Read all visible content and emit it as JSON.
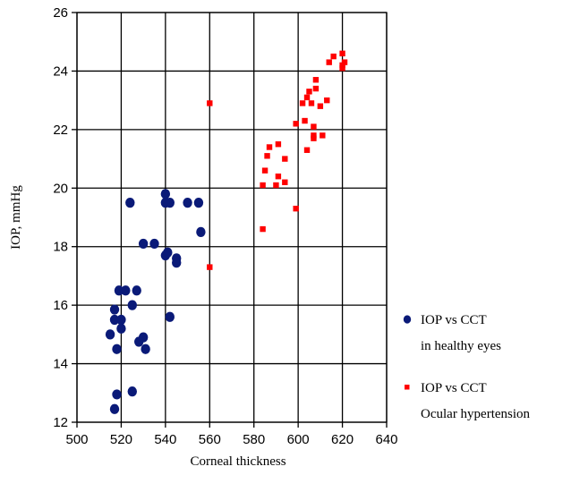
{
  "chart_data": {
    "type": "scatter",
    "title": "",
    "xlabel": "Corneal thickness",
    "ylabel": "IOP, mmHg",
    "xlim": [
      500,
      640
    ],
    "ylim": [
      12,
      26
    ],
    "x_ticks": [
      "500",
      "520",
      "540",
      "560",
      "580",
      "600",
      "620",
      "640"
    ],
    "y_ticks": [
      "12",
      "14",
      "16",
      "18",
      "20",
      "22",
      "24",
      "26"
    ],
    "grid": true,
    "legend_position": "right",
    "series": [
      {
        "name_lines": [
          "IOP vs CCT",
          "in healthy eyes"
        ],
        "color": "#0a1a78",
        "marker": "circle",
        "points": [
          [
            524,
            19.5
          ],
          [
            540,
            19.8
          ],
          [
            540,
            19.5
          ],
          [
            542,
            19.5
          ],
          [
            550,
            19.5
          ],
          [
            555,
            19.5
          ],
          [
            556,
            18.5
          ],
          [
            530,
            18.1
          ],
          [
            535,
            18.1
          ],
          [
            540,
            17.7
          ],
          [
            541,
            17.8
          ],
          [
            545,
            17.6
          ],
          [
            545,
            17.45
          ],
          [
            519,
            16.5
          ],
          [
            522,
            16.5
          ],
          [
            527,
            16.5
          ],
          [
            525,
            16.0
          ],
          [
            517,
            15.85
          ],
          [
            517,
            15.5
          ],
          [
            520,
            15.5
          ],
          [
            542,
            15.6
          ],
          [
            520,
            15.2
          ],
          [
            515,
            15.0
          ],
          [
            530,
            14.9
          ],
          [
            528,
            14.75
          ],
          [
            518,
            14.5
          ],
          [
            531,
            14.5
          ],
          [
            525,
            13.05
          ],
          [
            518,
            12.95
          ],
          [
            517,
            12.45
          ]
        ]
      },
      {
        "name_lines": [
          "IOP vs CCT",
          "Ocular hypertension"
        ],
        "color": "#ff0000",
        "marker": "square",
        "points": [
          [
            560,
            22.9
          ],
          [
            560,
            17.3
          ],
          [
            584,
            18.6
          ],
          [
            599,
            19.3
          ],
          [
            584,
            20.1
          ],
          [
            590,
            20.1
          ],
          [
            594,
            20.2
          ],
          [
            591,
            20.4
          ],
          [
            585,
            20.6
          ],
          [
            594,
            21.0
          ],
          [
            586,
            21.1
          ],
          [
            587,
            21.4
          ],
          [
            591,
            21.5
          ],
          [
            604,
            21.3
          ],
          [
            607,
            21.7
          ],
          [
            607,
            21.8
          ],
          [
            611,
            21.8
          ],
          [
            607,
            22.1
          ],
          [
            599,
            22.2
          ],
          [
            603,
            22.3
          ],
          [
            602,
            22.9
          ],
          [
            606,
            22.9
          ],
          [
            610,
            22.8
          ],
          [
            613,
            23.0
          ],
          [
            604,
            23.1
          ],
          [
            605,
            23.3
          ],
          [
            608,
            23.4
          ],
          [
            608,
            23.7
          ],
          [
            614,
            24.3
          ],
          [
            616,
            24.5
          ],
          [
            620,
            24.6
          ],
          [
            620,
            24.2
          ],
          [
            621,
            24.3
          ],
          [
            620,
            24.1
          ]
        ]
      }
    ]
  }
}
